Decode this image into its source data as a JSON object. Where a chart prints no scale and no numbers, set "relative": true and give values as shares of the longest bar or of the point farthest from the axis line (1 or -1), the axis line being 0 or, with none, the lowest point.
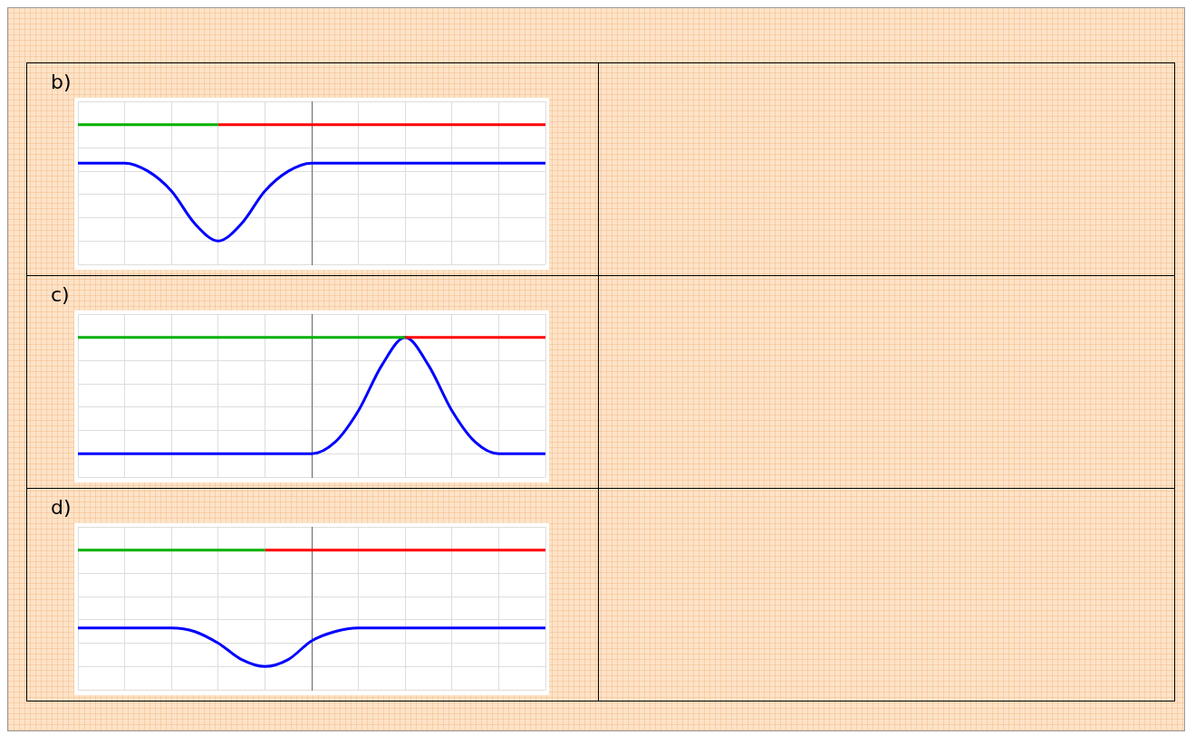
{
  "chart_data": [
    {
      "type": "line",
      "title": "b)",
      "relative": true,
      "grid": true,
      "tick_labels": false,
      "legend": false,
      "categories": [
        null,
        null,
        null,
        null,
        null,
        null,
        null,
        null,
        null,
        null,
        null,
        null,
        null,
        null,
        null,
        null,
        null,
        null,
        null,
        null,
        null
      ],
      "series": [
        {
          "color": "#00b000",
          "values": [
            1,
            1,
            1,
            1,
            1,
            1,
            1,
            null,
            null,
            null,
            null,
            null,
            null,
            null,
            null,
            null,
            null,
            null,
            null,
            null,
            null
          ]
        },
        {
          "color": "#ff0000",
          "values": [
            null,
            null,
            null,
            null,
            null,
            null,
            1,
            1,
            1,
            1,
            1,
            1,
            1,
            1,
            1,
            1,
            1,
            1,
            1,
            1,
            1
          ]
        },
        {
          "color": "#0000ff",
          "values": [
            0.67,
            0.67,
            0.67,
            0.6,
            0.43,
            0.15,
            0,
            0.15,
            0.43,
            0.6,
            0.67,
            0.67,
            0.67,
            0.67,
            0.67,
            0.67,
            0.67,
            0.67,
            0.67,
            0.67,
            0.67
          ]
        }
      ]
    },
    {
      "type": "line",
      "title": "c)",
      "relative": true,
      "grid": true,
      "tick_labels": false,
      "legend": false,
      "categories": [
        null,
        null,
        null,
        null,
        null,
        null,
        null,
        null,
        null,
        null,
        null,
        null,
        null,
        null,
        null,
        null,
        null,
        null,
        null,
        null,
        null
      ],
      "series": [
        {
          "color": "#00b000",
          "values": [
            1,
            1,
            1,
            1,
            1,
            1,
            1,
            1,
            1,
            1,
            1,
            1,
            1,
            1,
            1,
            null,
            null,
            null,
            null,
            null,
            null
          ]
        },
        {
          "color": "#ff0000",
          "values": [
            null,
            null,
            null,
            null,
            null,
            null,
            null,
            null,
            null,
            null,
            null,
            null,
            null,
            null,
            1,
            1,
            1,
            1,
            1,
            1,
            1
          ]
        },
        {
          "color": "#0000ff",
          "values": [
            0,
            0,
            0,
            0,
            0,
            0,
            0,
            0,
            0,
            0,
            0,
            0.1,
            0.37,
            0.76,
            1,
            0.76,
            0.37,
            0.1,
            0,
            0,
            0
          ]
        }
      ]
    },
    {
      "type": "line",
      "title": "d)",
      "relative": true,
      "grid": true,
      "tick_labels": false,
      "legend": false,
      "categories": [
        null,
        null,
        null,
        null,
        null,
        null,
        null,
        null,
        null,
        null,
        null,
        null,
        null,
        null,
        null,
        null,
        null,
        null,
        null,
        null,
        null
      ],
      "series": [
        {
          "color": "#00b000",
          "values": [
            1,
            1,
            1,
            1,
            1,
            1,
            1,
            1,
            1,
            null,
            null,
            null,
            null,
            null,
            null,
            null,
            null,
            null,
            null,
            null,
            null
          ]
        },
        {
          "color": "#ff0000",
          "values": [
            null,
            null,
            null,
            null,
            null,
            null,
            null,
            null,
            1,
            1,
            1,
            1,
            1,
            1,
            1,
            1,
            1,
            1,
            1,
            1,
            1
          ]
        },
        {
          "color": "#0000ff",
          "values": [
            0.33,
            0.33,
            0.33,
            0.33,
            0.33,
            0.3,
            0.2,
            0.06,
            0,
            0.06,
            0.22,
            0.3,
            0.33,
            0.33,
            0.33,
            0.33,
            0.33,
            0.33,
            0.33,
            0.33,
            0.33
          ]
        }
      ]
    }
  ]
}
